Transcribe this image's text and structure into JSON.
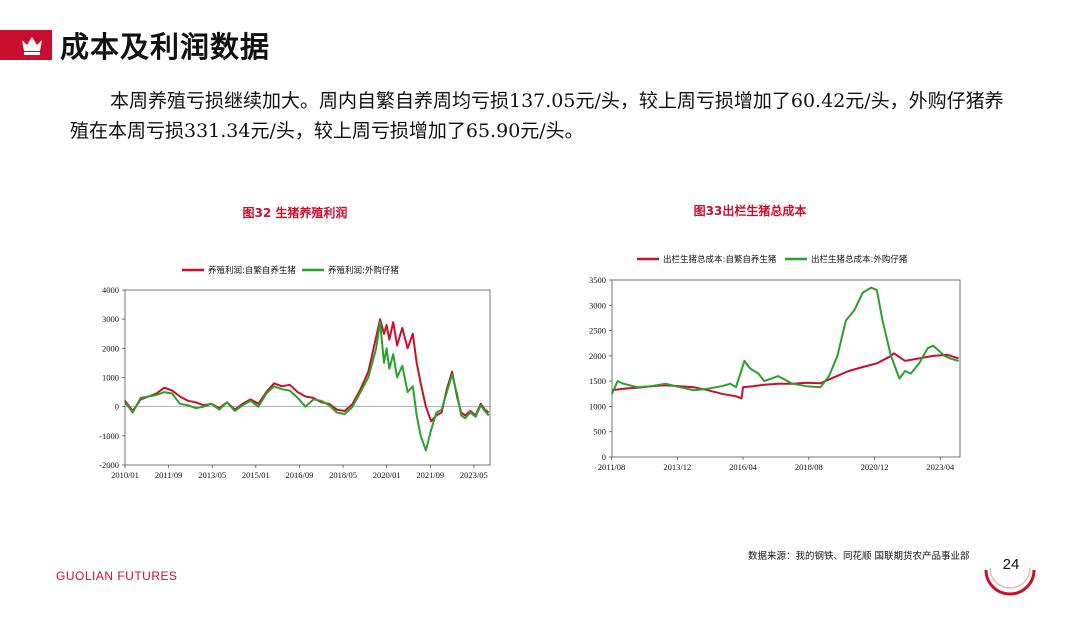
{
  "header": {
    "title": "成本及利润数据",
    "icon": "crown-icon",
    "accent_color": "#c8102e"
  },
  "body": {
    "paragraph": "本周养殖亏损继续加大。周内自繁自养周均亏损137.05元/头，较上周亏损增加了60.42元/头，外购仔猪养殖在本周亏损331.34元/头，较上周亏损增加了65.90元/头。"
  },
  "chart_data": [
    {
      "type": "line",
      "title": "图32 生猪养殖利润",
      "xlabel": "",
      "ylabel": "",
      "ylim": [
        -2000,
        4000
      ],
      "yticks": [
        "4000",
        "3000",
        "2000",
        "1000",
        "0",
        "-1000",
        "-2000"
      ],
      "xticks": [
        "2010/01",
        "2011/09",
        "2013/05",
        "2015/01",
        "2016/09",
        "2018/05",
        "2020/01",
        "2021/09",
        "2023/05"
      ],
      "legend_position": "top",
      "series": [
        {
          "name": "养殖利润:自繁自养生猪",
          "color": "#c8102e",
          "x": [
            2010.0,
            2010.3,
            2010.6,
            2010.9,
            2011.2,
            2011.5,
            2011.8,
            2012.1,
            2012.4,
            2012.7,
            2013.0,
            2013.3,
            2013.6,
            2013.9,
            2014.2,
            2014.5,
            2014.8,
            2015.1,
            2015.4,
            2015.7,
            2016.0,
            2016.3,
            2016.6,
            2016.9,
            2017.2,
            2017.5,
            2017.8,
            2018.1,
            2018.4,
            2018.7,
            2019.0,
            2019.3,
            2019.6,
            2019.75,
            2019.9,
            2020.0,
            2020.1,
            2020.25,
            2020.4,
            2020.6,
            2020.8,
            2021.0,
            2021.15,
            2021.3,
            2021.5,
            2021.7,
            2021.9,
            2022.1,
            2022.3,
            2022.5,
            2022.7,
            2022.85,
            2023.0,
            2023.2,
            2023.4,
            2023.6,
            2023.75,
            2023.9
          ],
          "y": [
            200,
            -150,
            250,
            350,
            450,
            650,
            550,
            350,
            200,
            150,
            50,
            100,
            -50,
            150,
            -100,
            100,
            250,
            100,
            500,
            800,
            700,
            750,
            500,
            350,
            300,
            150,
            100,
            -100,
            -150,
            100,
            600,
            1200,
            2400,
            3000,
            2500,
            2800,
            2300,
            2900,
            2100,
            2700,
            2000,
            2500,
            1500,
            800,
            0,
            -500,
            -300,
            -200,
            600,
            1200,
            300,
            -200,
            -300,
            -150,
            -300,
            100,
            -100,
            -200
          ]
        },
        {
          "name": "养殖利润:外购仔猪",
          "color": "#2ca02c",
          "x": [
            2010.0,
            2010.3,
            2010.6,
            2010.9,
            2011.2,
            2011.5,
            2011.8,
            2012.1,
            2012.4,
            2012.7,
            2013.0,
            2013.3,
            2013.6,
            2013.9,
            2014.2,
            2014.5,
            2014.8,
            2015.1,
            2015.4,
            2015.7,
            2016.0,
            2016.3,
            2016.6,
            2016.9,
            2017.2,
            2017.5,
            2017.8,
            2018.1,
            2018.4,
            2018.7,
            2019.0,
            2019.3,
            2019.6,
            2019.75,
            2019.9,
            2020.0,
            2020.1,
            2020.25,
            2020.4,
            2020.6,
            2020.8,
            2021.0,
            2021.15,
            2021.3,
            2021.5,
            2021.7,
            2021.9,
            2022.1,
            2022.3,
            2022.5,
            2022.7,
            2022.85,
            2023.0,
            2023.2,
            2023.4,
            2023.6,
            2023.75,
            2023.9
          ],
          "y": [
            150,
            -200,
            300,
            350,
            400,
            500,
            450,
            100,
            50,
            -50,
            0,
            100,
            -100,
            150,
            -150,
            50,
            200,
            0,
            450,
            700,
            600,
            550,
            300,
            0,
            250,
            200,
            50,
            -200,
            -250,
            0,
            500,
            1000,
            2000,
            2900,
            1500,
            2000,
            1300,
            1800,
            1000,
            1400,
            500,
            700,
            -300,
            -1000,
            -1500,
            -800,
            -200,
            -100,
            500,
            1100,
            400,
            -300,
            -400,
            -200,
            -350,
            50,
            -150,
            -300
          ]
        }
      ]
    },
    {
      "type": "line",
      "title": "图33出栏生猪总成本",
      "xlabel": "",
      "ylabel": "",
      "ylim": [
        0,
        3500
      ],
      "yticks": [
        "3500",
        "3000",
        "2500",
        "2000",
        "1500",
        "1000",
        "500",
        "0"
      ],
      "xticks": [
        "2011/08",
        "2013/12",
        "2016/04",
        "2018/08",
        "2020/12",
        "2023/04"
      ],
      "legend_position": "top",
      "series": [
        {
          "name": "出栏生猪总成本:自繁自养生猪",
          "color": "#c8102e",
          "x": [
            2011.6,
            2012.0,
            2012.5,
            2013.0,
            2013.5,
            2014.0,
            2014.5,
            2015.0,
            2015.5,
            2016.0,
            2016.2,
            2016.25,
            2016.6,
            2017.0,
            2017.5,
            2018.0,
            2018.5,
            2019.0,
            2019.5,
            2020.0,
            2020.5,
            2021.0,
            2021.5,
            2021.6,
            2022.0,
            2022.5,
            2023.0,
            2023.5,
            2023.9
          ],
          "y": [
            1320,
            1350,
            1370,
            1400,
            1420,
            1400,
            1380,
            1320,
            1250,
            1200,
            1160,
            1380,
            1400,
            1430,
            1450,
            1450,
            1470,
            1460,
            1580,
            1700,
            1780,
            1850,
            2000,
            2050,
            1900,
            1950,
            2000,
            2020,
            1950
          ]
        },
        {
          "name": "出栏生猪总成本:外购仔猪",
          "color": "#2ca02c",
          "x": [
            2011.6,
            2011.8,
            2012.0,
            2012.5,
            2013.0,
            2013.5,
            2014.0,
            2014.5,
            2015.0,
            2015.5,
            2015.8,
            2016.0,
            2016.3,
            2016.5,
            2016.8,
            2017.0,
            2017.5,
            2018.0,
            2018.5,
            2019.0,
            2019.3,
            2019.6,
            2019.9,
            2020.2,
            2020.5,
            2020.8,
            2021.0,
            2021.2,
            2021.5,
            2021.8,
            2022.0,
            2022.2,
            2022.5,
            2022.8,
            2023.0,
            2023.2,
            2023.4,
            2023.6,
            2023.9
          ],
          "y": [
            1250,
            1500,
            1450,
            1380,
            1400,
            1450,
            1380,
            1320,
            1350,
            1400,
            1450,
            1380,
            1900,
            1750,
            1650,
            1500,
            1600,
            1450,
            1400,
            1380,
            1600,
            2000,
            2700,
            2900,
            3250,
            3350,
            3300,
            2700,
            2000,
            1550,
            1700,
            1650,
            1850,
            2150,
            2200,
            2100,
            2000,
            1950,
            1900
          ]
        }
      ]
    }
  ],
  "footer": {
    "source": "数据来源：我的钢铁、同花顺  国联期货农产品事业部",
    "brand": "GUOLIAN FUTURES",
    "page_number": "24"
  }
}
